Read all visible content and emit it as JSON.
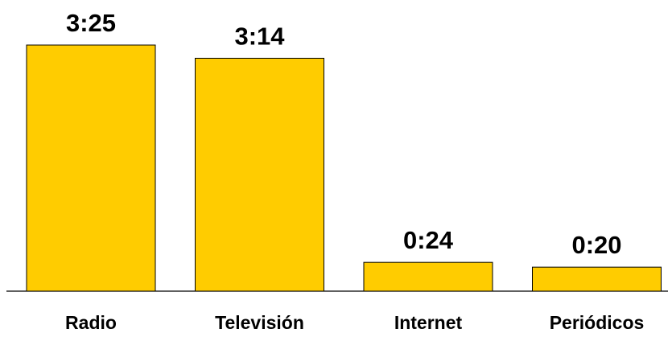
{
  "chart_data": {
    "type": "bar",
    "categories": [
      "Radio",
      "Televisión",
      "Internet",
      "Periódicos"
    ],
    "values": [
      205,
      194,
      24,
      20
    ],
    "value_labels": [
      "3:25",
      "3:14",
      "0:24",
      "0:20"
    ],
    "value_unit": "minutes",
    "title": "",
    "xlabel": "",
    "ylabel": "",
    "ylim": [
      0,
      205
    ],
    "grid": false,
    "legend": "none"
  },
  "colors": {
    "bar_fill": "#FFCC00",
    "bar_stroke": "#000000"
  }
}
